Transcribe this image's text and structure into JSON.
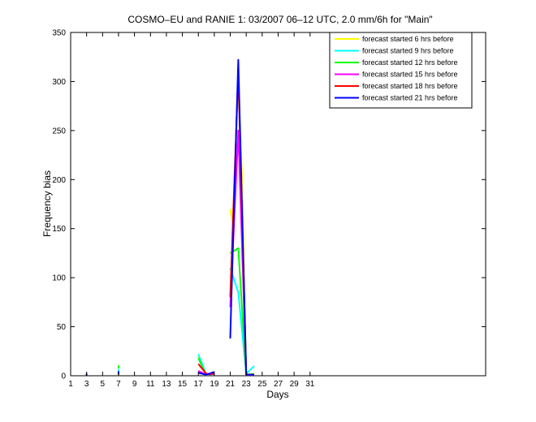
{
  "chart_data": {
    "type": "line",
    "title": "COSMO–EU and RANIE 1: 03/2007 06–12 UTC, 2.0 mm/6h for \"Main\"",
    "xlabel": "Days",
    "ylabel": "Frequency bias",
    "xlim": [
      1,
      53
    ],
    "ylim": [
      0,
      350
    ],
    "xticks": [
      1,
      3,
      5,
      7,
      9,
      11,
      13,
      15,
      17,
      19,
      21,
      23,
      25,
      27,
      29,
      31
    ],
    "xtick_labels": [
      "1",
      "3",
      "5",
      "7",
      "9",
      "11",
      "13",
      "15",
      "17",
      "19",
      "21",
      "23",
      "25",
      "27",
      "29",
      "31"
    ],
    "yticks": [
      0,
      50,
      100,
      150,
      200,
      250,
      300,
      350
    ],
    "legend_position": "top-right",
    "series": [
      {
        "name": "forecast started 6 hrs before",
        "color": "#ffff00",
        "segments": [
          [
            [
              7,
              2
            ]
          ],
          [
            [
              17,
              20
            ],
            [
              18,
              1
            ],
            [
              19,
              3
            ]
          ],
          [
            [
              21,
              170
            ],
            [
              21.3,
              155
            ],
            [
              22,
              298
            ],
            [
              22.5,
              200
            ],
            [
              23,
              0
            ],
            [
              24,
              1
            ]
          ]
        ]
      },
      {
        "name": "forecast started 9 hrs before",
        "color": "#00ffff",
        "segments": [
          [
            [
              7,
              5
            ]
          ],
          [
            [
              17,
              22
            ],
            [
              18,
              1
            ],
            [
              19,
              2
            ]
          ],
          [
            [
              21,
              110
            ],
            [
              22,
              85
            ],
            [
              23,
              2
            ],
            [
              24,
              10
            ]
          ]
        ]
      },
      {
        "name": "forecast started 12 hrs before",
        "color": "#00ff00",
        "segments": [
          [
            [
              7,
              9
            ]
          ],
          [
            [
              17,
              18
            ],
            [
              18,
              0
            ],
            [
              19,
              3
            ]
          ],
          [
            [
              21,
              125
            ],
            [
              22,
              130
            ],
            [
              23,
              1
            ],
            [
              24,
              2
            ]
          ]
        ]
      },
      {
        "name": "forecast started 15 hrs before",
        "color": "#ff00ff",
        "segments": [
          [
            [
              3,
              1
            ]
          ],
          [
            [
              17,
              5
            ],
            [
              18,
              1
            ],
            [
              19,
              2
            ]
          ],
          [
            [
              21,
              70
            ],
            [
              22,
              250
            ],
            [
              23,
              1
            ],
            [
              24,
              1
            ]
          ]
        ]
      },
      {
        "name": "forecast started 18 hrs before",
        "color": "#ff0000",
        "segments": [
          [
            [
              17,
              12
            ],
            [
              18,
              2
            ],
            [
              19,
              2
            ]
          ],
          [
            [
              21,
              80
            ],
            [
              22,
              310
            ],
            [
              23,
              1
            ],
            [
              24,
              1
            ]
          ]
        ]
      },
      {
        "name": "forecast started 21 hrs before",
        "color": "#0000ff",
        "segments": [
          [
            [
              3,
              0
            ]
          ],
          [
            [
              7,
              3
            ]
          ],
          [
            [
              17,
              3
            ],
            [
              18,
              1
            ],
            [
              19,
              4
            ]
          ],
          [
            [
              21,
              38
            ],
            [
              22,
              322
            ],
            [
              23,
              1
            ],
            [
              24,
              1
            ]
          ]
        ]
      }
    ]
  }
}
